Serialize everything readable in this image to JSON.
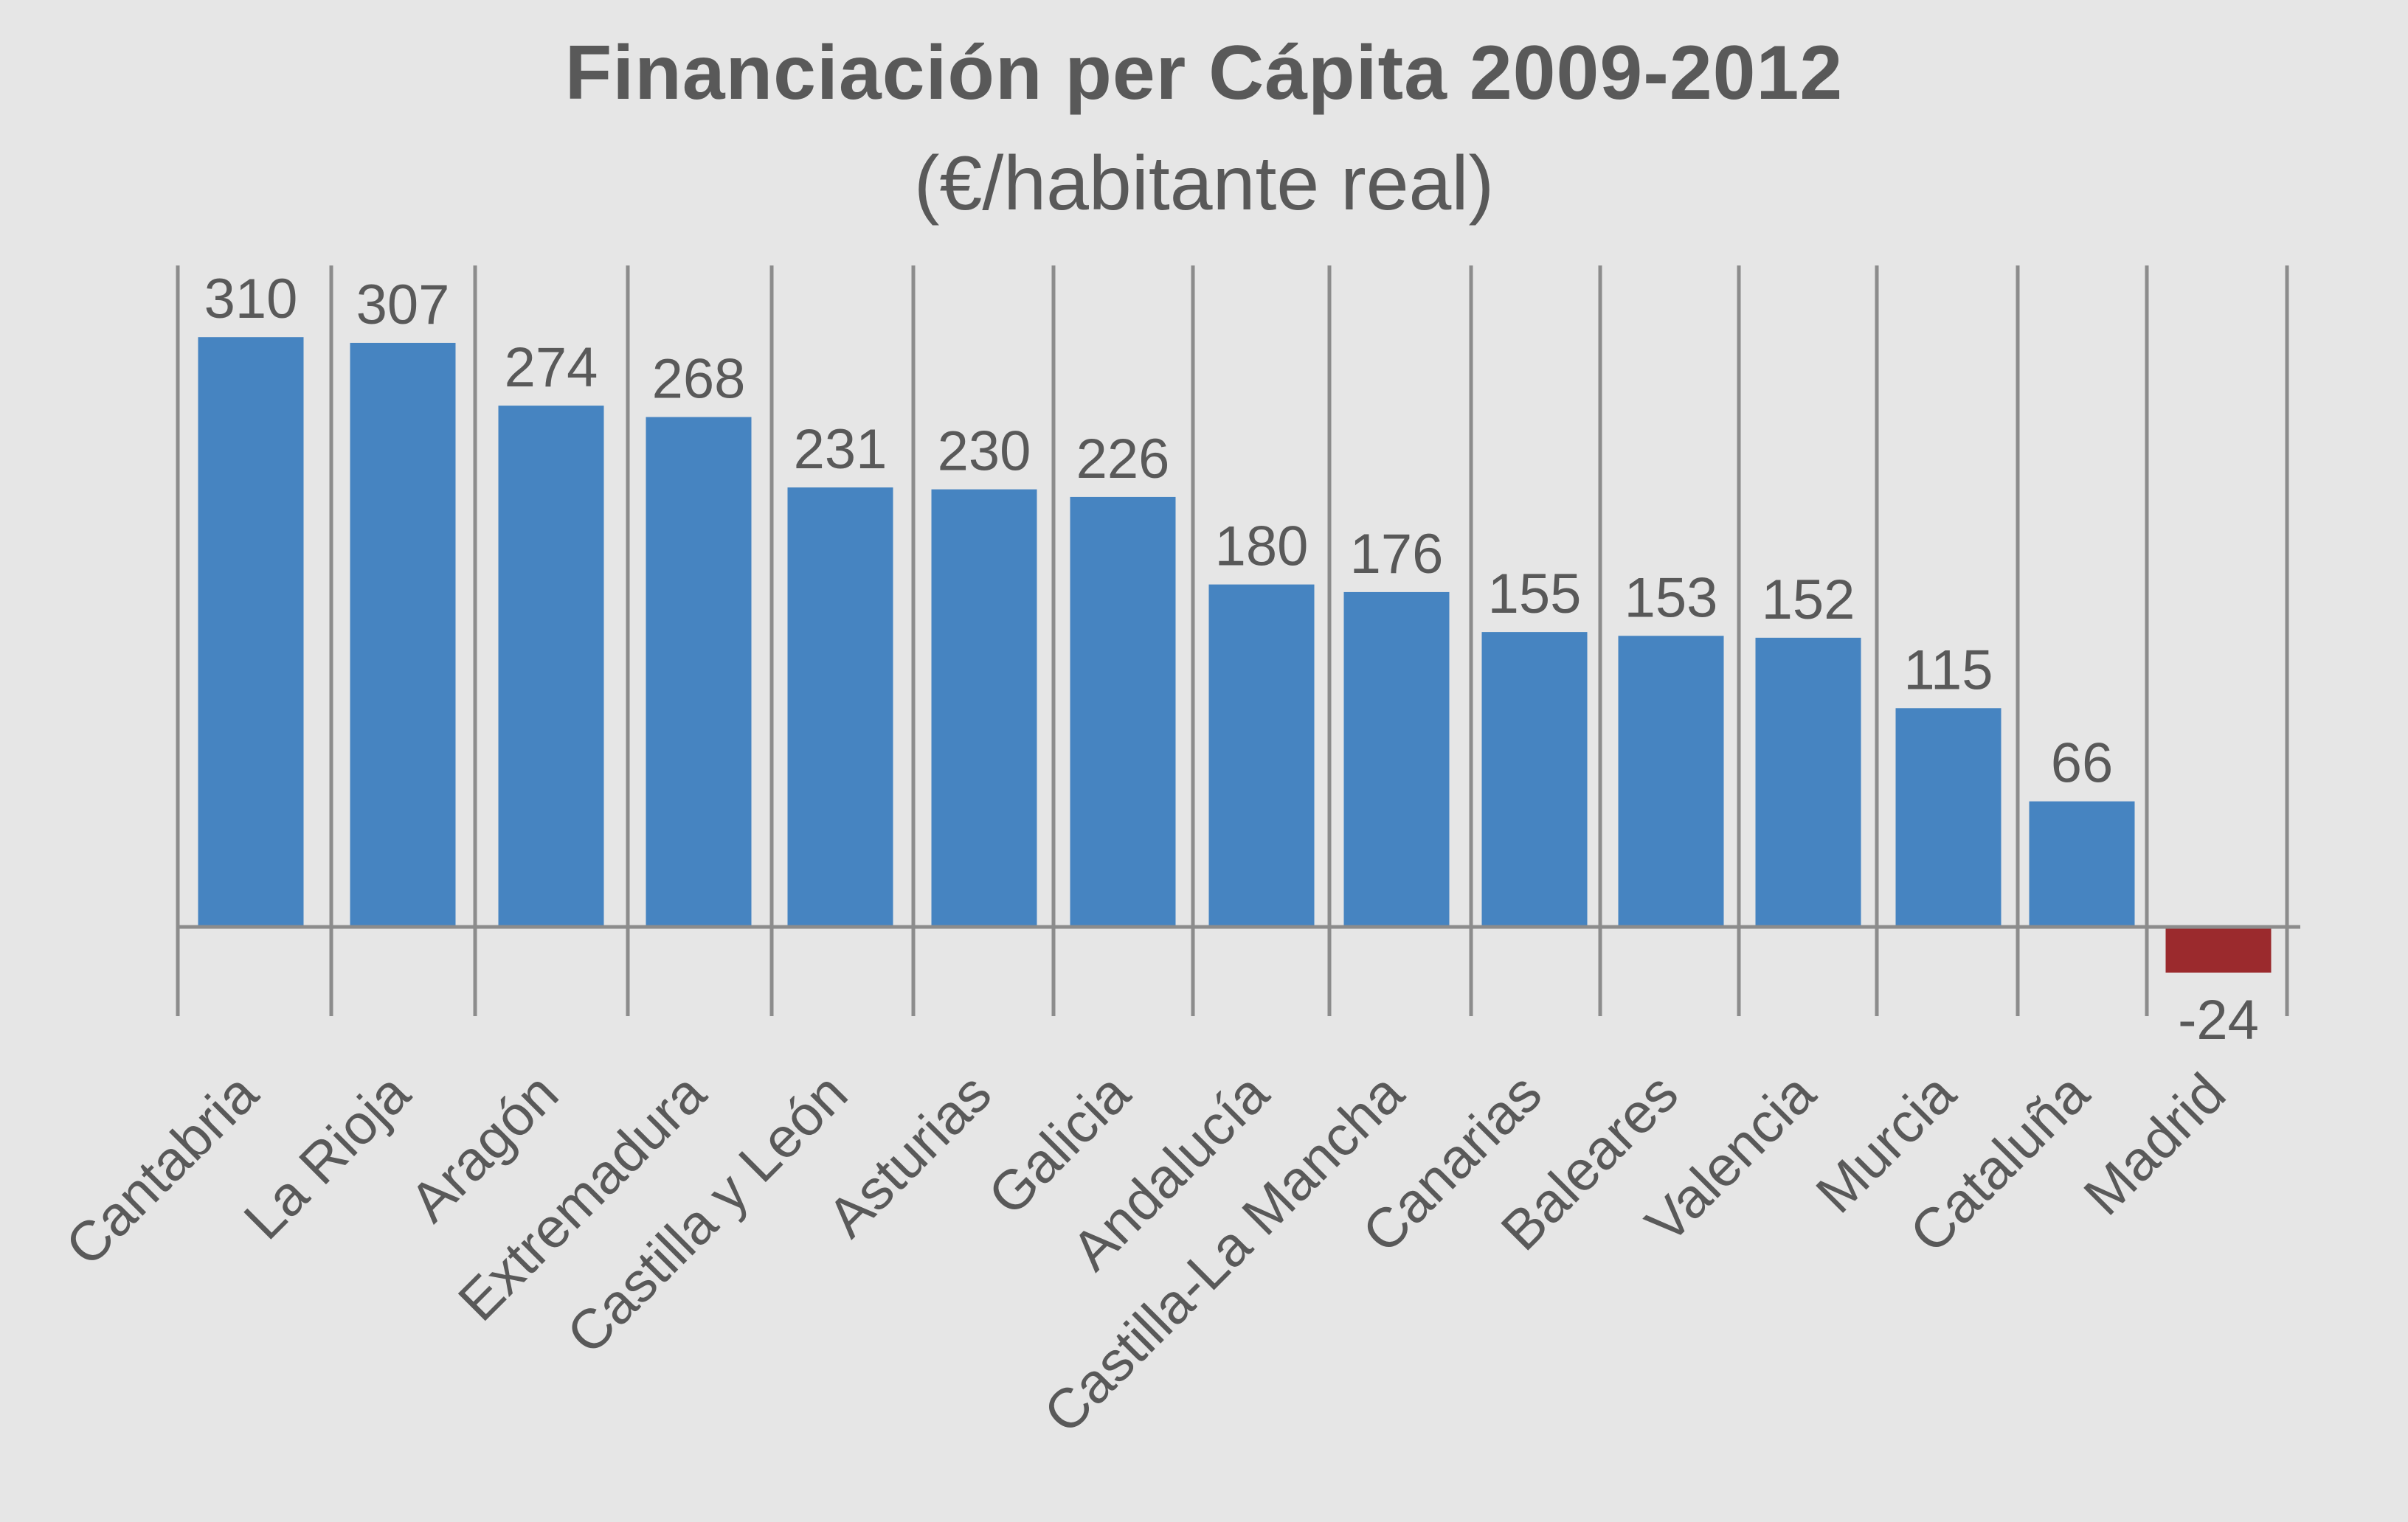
{
  "chart_data": {
    "type": "bar",
    "title": "Financiación per Cápita 2009-2012",
    "subtitle": "(€/habitante real)",
    "xlabel": "",
    "ylabel": "",
    "categories": [
      "Cantabria",
      "La Rioja",
      "Aragón",
      "Extremadura",
      "Castilla y León",
      "Asturias",
      "Galicia",
      "Andalucía",
      "Castilla-La Mancha",
      "Canarias",
      "Baleares",
      "Valencia",
      "Murcia",
      "Cataluña",
      "Madrid"
    ],
    "values": [
      310,
      307,
      274,
      268,
      231,
      230,
      226,
      180,
      176,
      155,
      153,
      152,
      115,
      66,
      -24
    ],
    "value_labels": [
      "310",
      "307",
      "274",
      "268",
      "231",
      "230",
      "226",
      "180",
      "176",
      "155",
      "153",
      "152",
      "115",
      "66",
      "-24"
    ],
    "ylim": [
      -24,
      310
    ],
    "grid": false,
    "legend": "none",
    "colors": {
      "positive": "#4684c1",
      "negative": "#9b2a2d",
      "axis": "#8c8c8c",
      "text": "#595959",
      "background": "#e6e6e6"
    }
  }
}
